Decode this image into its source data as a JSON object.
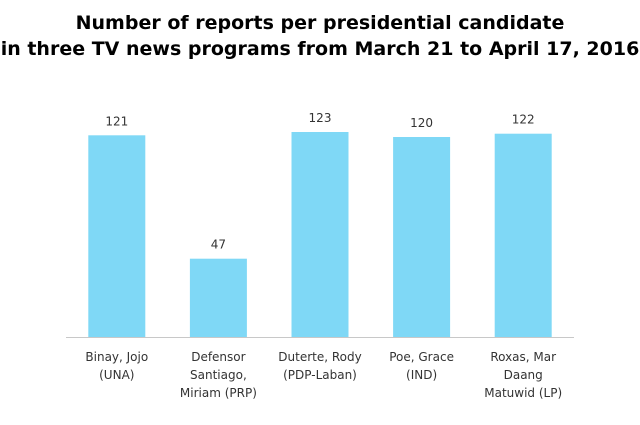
{
  "chart_data": {
    "type": "bar",
    "title_lines": [
      "Number of reports per presidential candidate",
      "in three TV news programs from March 21 to April 17, 2016"
    ],
    "categories": [
      [
        "Binay, Jojo",
        "(UNA)"
      ],
      [
        "Defensor",
        "Santiago,",
        "Miriam (PRP)"
      ],
      [
        "Duterte, Rody",
        "(PDP-Laban)"
      ],
      [
        "Poe, Grace",
        "(IND)"
      ],
      [
        "Roxas, Mar",
        "Daang",
        "Matuwid (LP)"
      ]
    ],
    "values": [
      121,
      47,
      123,
      120,
      122
    ],
    "data_labels": [
      "121",
      "47",
      "123",
      "120",
      "122"
    ],
    "ylim": [
      0,
      123
    ],
    "bar_color": "#7fd8f6",
    "axis_color": "#c8c8c8",
    "grid": false,
    "legend": false
  }
}
